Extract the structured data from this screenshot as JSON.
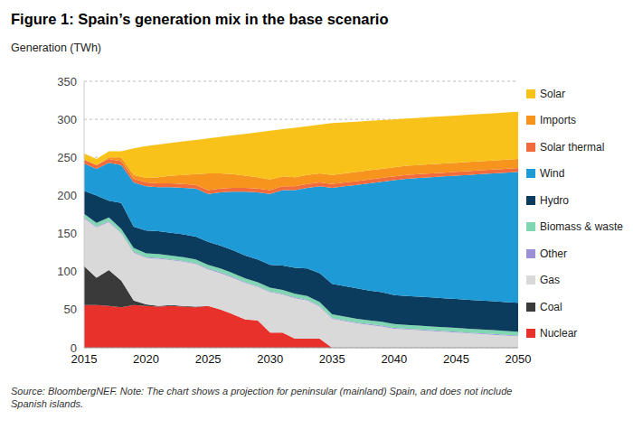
{
  "chart_data": {
    "type": "area",
    "title": "Figure 1: Spain’s generation mix in the base scenario",
    "y_label": "Generation (TWh)",
    "source": "Source: BloombergNEF. Note: The chart shows a projection for peninsular (mainland) Spain, and does not include Spanish islands.",
    "stacked": true,
    "grid": true,
    "legend": "right",
    "x": [
      2015,
      2016,
      2017,
      2018,
      2019,
      2020,
      2021,
      2022,
      2023,
      2024,
      2025,
      2026,
      2027,
      2028,
      2029,
      2030,
      2031,
      2032,
      2033,
      2034,
      2035,
      2036,
      2037,
      2038,
      2039,
      2040,
      2041,
      2042,
      2043,
      2044,
      2045,
      2046,
      2047,
      2048,
      2049,
      2050
    ],
    "xlim": [
      2015,
      2050
    ],
    "xticks": [
      2015,
      2020,
      2025,
      2030,
      2035,
      2040,
      2045,
      2050
    ],
    "ylim": [
      0,
      350
    ],
    "yticks": [
      0,
      50,
      100,
      150,
      200,
      250,
      300,
      350
    ],
    "series": [
      {
        "name": "Nuclear",
        "color": "#e8312a",
        "values": [
          56,
          56,
          55,
          53,
          56,
          55,
          54,
          55,
          54,
          53,
          55,
          50,
          44,
          37,
          36,
          20,
          20,
          12,
          12,
          12,
          0,
          0,
          0,
          0,
          0,
          0,
          0,
          0,
          0,
          0,
          0,
          0,
          0,
          0,
          0,
          0
        ]
      },
      {
        "name": "Coal",
        "color": "#3a3a3a",
        "values": [
          51,
          36,
          47,
          35,
          6,
          2,
          1,
          1,
          1,
          1,
          0,
          0,
          0,
          0,
          0,
          0,
          0,
          0,
          0,
          0,
          0,
          0,
          0,
          0,
          0,
          0,
          0,
          0,
          0,
          0,
          0,
          0,
          0,
          0,
          0,
          0
        ]
      },
      {
        "name": "Gas",
        "color": "#d9d9d9",
        "values": [
          63,
          66,
          63,
          62,
          63,
          61,
          62,
          59,
          58,
          56,
          48,
          48,
          48,
          48,
          44,
          53,
          50,
          53,
          50,
          42,
          38,
          35,
          32,
          30,
          28,
          25,
          24,
          23,
          22,
          21,
          20,
          19,
          18,
          17,
          16,
          15
        ]
      },
      {
        "name": "Other",
        "color": "#9b8fd6",
        "values": [
          1,
          1,
          1,
          1,
          1,
          1,
          1,
          1,
          1,
          1,
          1,
          1,
          1,
          1,
          1,
          1,
          1,
          1,
          1,
          1,
          1,
          1,
          1,
          1,
          1,
          1,
          1,
          1,
          1,
          1,
          1,
          1,
          1,
          1,
          1,
          1
        ]
      },
      {
        "name": "Biomass & waste",
        "color": "#7fd6b0",
        "values": [
          5,
          5,
          5,
          5,
          5,
          5,
          5,
          5,
          5,
          5,
          5,
          5,
          5,
          5,
          5,
          5,
          5,
          5,
          5,
          5,
          5,
          5,
          5,
          5,
          5,
          5,
          5,
          5,
          5,
          5,
          5,
          5,
          5,
          5,
          5,
          5
        ]
      },
      {
        "name": "Hydro",
        "color": "#0b3c5d",
        "values": [
          30,
          36,
          22,
          34,
          28,
          30,
          30,
          30,
          30,
          30,
          30,
          30,
          30,
          30,
          30,
          30,
          32,
          34,
          36,
          38,
          40,
          40,
          40,
          39,
          39,
          38,
          38,
          38,
          38,
          38,
          38,
          38,
          38,
          38,
          38,
          38
        ]
      },
      {
        "name": "Wind",
        "color": "#1e9bd7",
        "values": [
          36,
          35,
          50,
          50,
          58,
          58,
          58,
          60,
          61,
          63,
          63,
          70,
          77,
          84,
          88,
          93,
          99,
          102,
          106,
          114,
          126,
          131,
          136,
          141,
          145,
          151,
          154,
          156,
          158,
          160,
          162,
          164,
          166,
          168,
          170,
          172
        ]
      },
      {
        "name": "Solar thermal",
        "color": "#f26b3a",
        "values": [
          5,
          5,
          5,
          5,
          5,
          5,
          5,
          5,
          5,
          5,
          5,
          5,
          5,
          5,
          5,
          5,
          5,
          5,
          5,
          5,
          5,
          5,
          5,
          5,
          5,
          5,
          5,
          5,
          5,
          5,
          5,
          5,
          5,
          5,
          5,
          5
        ]
      },
      {
        "name": "Imports",
        "color": "#f7941d",
        "values": [
          0,
          0,
          2,
          5,
          5,
          6,
          8,
          10,
          12,
          14,
          22,
          20,
          18,
          16,
          15,
          14,
          13,
          12,
          12,
          12,
          12,
          12,
          12,
          12,
          12,
          12,
          12,
          12,
          12,
          12,
          12,
          12,
          12,
          12,
          12,
          12
        ]
      },
      {
        "name": "Solar",
        "color": "#f9c21a",
        "values": [
          8,
          8,
          8,
          8,
          35,
          42,
          43,
          43,
          44,
          45,
          46,
          48,
          51,
          55,
          59,
          64,
          62,
          65,
          64,
          64,
          68,
          67,
          66,
          65,
          64,
          63,
          62,
          62,
          62,
          62,
          62,
          62,
          62,
          62,
          62,
          62
        ]
      }
    ]
  }
}
